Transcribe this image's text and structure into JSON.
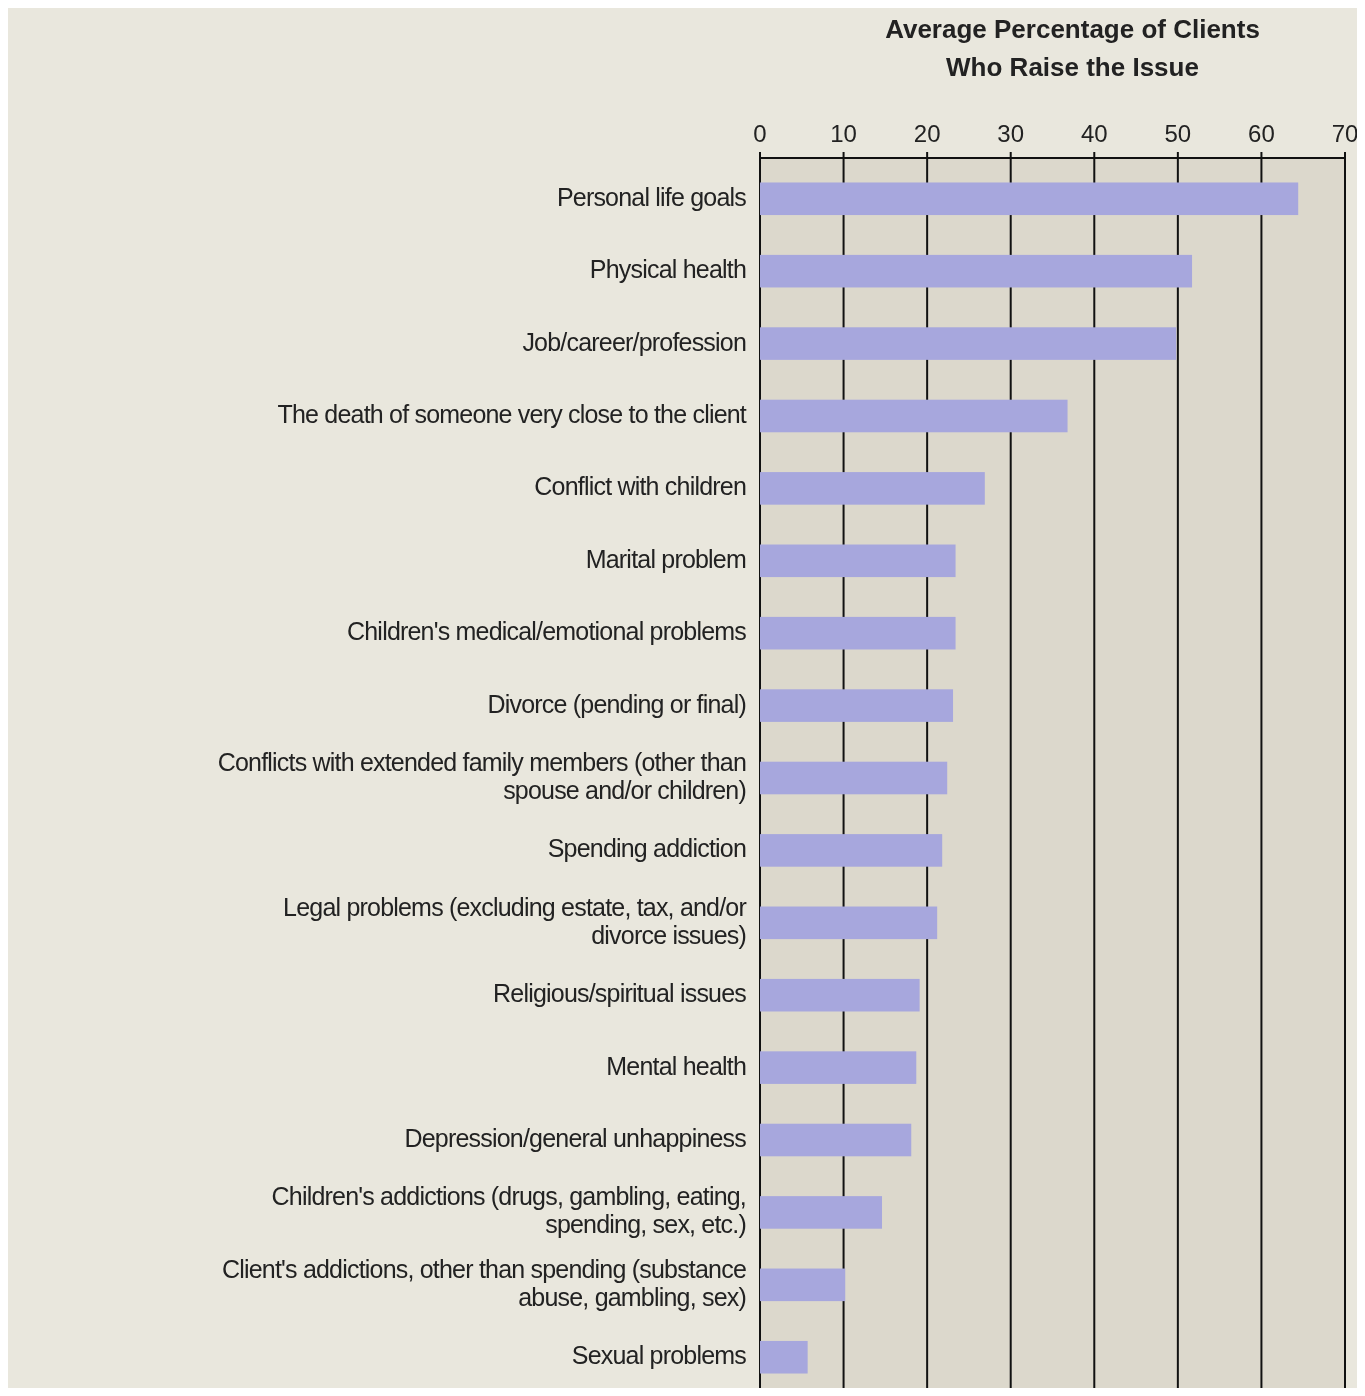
{
  "chart_data": {
    "type": "bar",
    "orientation": "horizontal",
    "xlabel": "Average Percentage of Clients Who Raise the Issue",
    "categories": [
      "Personal life goals",
      "Physical health",
      "Job/career/profession",
      "The death of someone very close to the client",
      "Conflict with children",
      "Marital problem",
      "Children's medical/emotional problems",
      "Divorce (pending or final)",
      "Conflicts with extended family members (other than spouse and/or children)",
      "Spending addiction",
      "Legal problems (excluding estate, tax, and/or divorce issues)",
      "Religious/spiritual issues",
      "Mental health",
      "Depression/general unhappiness",
      "Children's addictions (drugs, gambling, eating, spending, sex, etc.)",
      "Client's addictions, other than spending (substance abuse, gambling, sex)",
      "Sexual problems"
    ],
    "values": [
      64.4,
      51.7,
      49.8,
      36.8,
      26.9,
      23.4,
      23.4,
      23.1,
      22.4,
      21.8,
      21.2,
      19.1,
      18.7,
      18.1,
      14.6,
      10.2,
      5.7
    ],
    "color": "#a7a7dd",
    "xlim": [
      0,
      70
    ],
    "xticks": [
      0,
      10,
      20,
      30,
      40,
      50,
      60,
      70
    ],
    "grid": "x"
  }
}
